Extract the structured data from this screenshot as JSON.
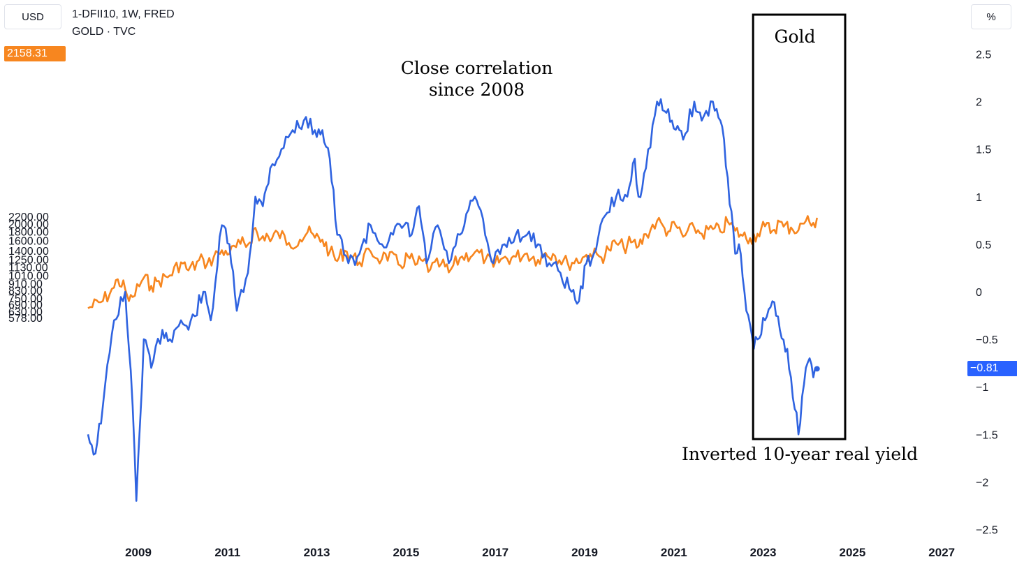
{
  "header": {
    "unit_left": "USD",
    "unit_right": "%",
    "legend_line1": "1-DFII10, 1W, FRED",
    "legend_line2": "GOLD · TVC",
    "gold_last_value": "2158.31",
    "real_yield_last_value": "−0.81"
  },
  "annotations": {
    "correlation_line1": "Close correlation",
    "correlation_line2": "since 2008",
    "box_label": "Gold",
    "inverted_label": "Inverted 10-year real yield"
  },
  "colors": {
    "gold": "#f7861f",
    "real_yield": "#2f63e0",
    "box": "#000000",
    "axis_text": "#131722"
  },
  "chart_data": {
    "type": "line",
    "x_ticks": [
      "2009",
      "2011",
      "2013",
      "2015",
      "2017",
      "2019",
      "2021",
      "2023",
      "2025",
      "2027"
    ],
    "left_axis": {
      "unit": "USD",
      "scale": "log",
      "ticks": [
        "578.00",
        "630.00",
        "690.00",
        "750.00",
        "830.00",
        "910.00",
        "1010.00",
        "1130.00",
        "1250.00",
        "1400.00",
        "1600.00",
        "1800.00",
        "2000.00",
        "2200.00"
      ]
    },
    "right_axis": {
      "unit": "%",
      "inverted": true,
      "ticks": [
        "2.5",
        "2",
        "1.5",
        "1",
        "0.5",
        "0",
        "−0.5",
        "−1",
        "−1.5",
        "−2",
        "−2.5"
      ]
    },
    "series": [
      {
        "name": "GOLD · TVC",
        "axis": "left",
        "points": [
          [
            "2007-11",
            655
          ],
          [
            "2008-03",
            720
          ],
          [
            "2008-06",
            860
          ],
          [
            "2008-07",
            960
          ],
          [
            "2008-09",
            840
          ],
          [
            "2008-10",
            720
          ],
          [
            "2008-11",
            760
          ],
          [
            "2009-02",
            980
          ],
          [
            "2009-04",
            880
          ],
          [
            "2009-06",
            940
          ],
          [
            "2009-09",
            1010
          ],
          [
            "2009-12",
            1200
          ],
          [
            "2010-02",
            1080
          ],
          [
            "2010-06",
            1250
          ],
          [
            "2010-07",
            1170
          ],
          [
            "2010-10",
            1360
          ],
          [
            "2010-12",
            1400
          ],
          [
            "2011-01",
            1340
          ],
          [
            "2011-04",
            1530
          ],
          [
            "2011-06",
            1520
          ],
          [
            "2011-08",
            1890
          ],
          [
            "2011-09",
            1600
          ],
          [
            "2011-11",
            1750
          ],
          [
            "2011-12",
            1580
          ],
          [
            "2012-02",
            1780
          ],
          [
            "2012-05",
            1550
          ],
          [
            "2012-08",
            1620
          ],
          [
            "2012-10",
            1780
          ],
          [
            "2012-12",
            1660
          ],
          [
            "2013-02",
            1620
          ],
          [
            "2013-04",
            1380
          ],
          [
            "2013-06",
            1220
          ],
          [
            "2013-08",
            1400
          ],
          [
            "2013-12",
            1200
          ],
          [
            "2014-03",
            1380
          ],
          [
            "2014-06",
            1250
          ],
          [
            "2014-07",
            1340
          ],
          [
            "2014-11",
            1150
          ],
          [
            "2015-01",
            1300
          ],
          [
            "2015-03",
            1160
          ],
          [
            "2015-05",
            1220
          ],
          [
            "2015-07",
            1090
          ],
          [
            "2015-10",
            1180
          ],
          [
            "2015-12",
            1050
          ],
          [
            "2016-03",
            1270
          ],
          [
            "2016-07",
            1370
          ],
          [
            "2016-10",
            1260
          ],
          [
            "2016-12",
            1130
          ],
          [
            "2017-02",
            1250
          ],
          [
            "2017-06",
            1290
          ],
          [
            "2017-09",
            1350
          ],
          [
            "2017-12",
            1240
          ],
          [
            "2018-02",
            1360
          ],
          [
            "2018-04",
            1340
          ],
          [
            "2018-08",
            1180
          ],
          [
            "2018-12",
            1280
          ],
          [
            "2019-02",
            1340
          ],
          [
            "2019-05",
            1280
          ],
          [
            "2019-07",
            1420
          ],
          [
            "2019-09",
            1540
          ],
          [
            "2019-11",
            1460
          ],
          [
            "2020-01",
            1560
          ],
          [
            "2020-03",
            1480
          ],
          [
            "2020-05",
            1740
          ],
          [
            "2020-08",
            2070
          ],
          [
            "2020-10",
            1880
          ],
          [
            "2020-11",
            1800
          ],
          [
            "2021-01",
            1950
          ],
          [
            "2021-03",
            1680
          ],
          [
            "2021-06",
            1890
          ],
          [
            "2021-08",
            1750
          ],
          [
            "2021-11",
            1860
          ],
          [
            "2022-01",
            1800
          ],
          [
            "2022-03",
            2050
          ],
          [
            "2022-05",
            1820
          ],
          [
            "2022-07",
            1700
          ],
          [
            "2022-09",
            1650
          ],
          [
            "2022-11",
            1750
          ],
          [
            "2023-01",
            1930
          ],
          [
            "2023-03",
            1820
          ],
          [
            "2023-05",
            2050
          ],
          [
            "2023-06",
            1920
          ],
          [
            "2023-08",
            1900
          ],
          [
            "2023-10",
            1830
          ],
          [
            "2023-11",
            2000
          ],
          [
            "2023-12",
            2070
          ],
          [
            "2024-01",
            2030
          ],
          [
            "2024-02",
            2020
          ],
          [
            "2024-03",
            2158.31
          ]
        ]
      },
      {
        "name": "1-DFII10, 1W, FRED",
        "axis": "right",
        "points": [
          [
            "2007-11",
            -1.5
          ],
          [
            "2008-01",
            -1.7
          ],
          [
            "2008-03",
            -1.2
          ],
          [
            "2008-06",
            -0.3
          ],
          [
            "2008-09",
            0.0
          ],
          [
            "2008-10",
            -0.6
          ],
          [
            "2008-11",
            -1.2
          ],
          [
            "2008-12",
            -2.2
          ],
          [
            "2009-02",
            -0.5
          ],
          [
            "2009-04",
            -0.8
          ],
          [
            "2009-07",
            -0.4
          ],
          [
            "2009-09",
            -0.5
          ],
          [
            "2009-12",
            -0.3
          ],
          [
            "2010-02",
            -0.4
          ],
          [
            "2010-06",
            0.0
          ],
          [
            "2010-08",
            -0.3
          ],
          [
            "2010-11",
            0.7
          ],
          [
            "2011-01",
            0.5
          ],
          [
            "2011-03",
            -0.2
          ],
          [
            "2011-06",
            0.2
          ],
          [
            "2011-08",
            1.0
          ],
          [
            "2011-10",
            0.9
          ],
          [
            "2011-12",
            1.3
          ],
          [
            "2012-03",
            1.5
          ],
          [
            "2012-06",
            1.7
          ],
          [
            "2012-09",
            1.8
          ],
          [
            "2012-12",
            1.7
          ],
          [
            "2013-02",
            1.7
          ],
          [
            "2013-04",
            1.4
          ],
          [
            "2013-06",
            0.6
          ],
          [
            "2013-09",
            0.3
          ],
          [
            "2013-12",
            0.4
          ],
          [
            "2014-03",
            0.7
          ],
          [
            "2014-06",
            0.5
          ],
          [
            "2014-09",
            0.6
          ],
          [
            "2014-12",
            0.7
          ],
          [
            "2015-02",
            0.6
          ],
          [
            "2015-04",
            0.9
          ],
          [
            "2015-06",
            0.3
          ],
          [
            "2015-09",
            0.7
          ],
          [
            "2015-12",
            0.3
          ],
          [
            "2016-03",
            0.6
          ],
          [
            "2016-07",
            1.0
          ],
          [
            "2016-08",
            0.9
          ],
          [
            "2016-11",
            0.4
          ],
          [
            "2016-12",
            0.3
          ],
          [
            "2017-03",
            0.5
          ],
          [
            "2017-06",
            0.6
          ],
          [
            "2017-09",
            0.6
          ],
          [
            "2017-12",
            0.5
          ],
          [
            "2018-03",
            0.3
          ],
          [
            "2018-06",
            0.2
          ],
          [
            "2018-09",
            0.0
          ],
          [
            "2018-11",
            -0.1
          ],
          [
            "2019-01",
            0.3
          ],
          [
            "2019-03",
            0.4
          ],
          [
            "2019-06",
            0.8
          ],
          [
            "2019-09",
            1.0
          ],
          [
            "2019-12",
            1.0
          ],
          [
            "2020-02",
            1.4
          ],
          [
            "2020-03",
            1.0
          ],
          [
            "2020-05",
            1.3
          ],
          [
            "2020-08",
            2.0
          ],
          [
            "2020-10",
            1.9
          ],
          [
            "2020-12",
            1.8
          ],
          [
            "2021-02",
            1.7
          ],
          [
            "2021-03",
            1.6
          ],
          [
            "2021-06",
            2.0
          ],
          [
            "2021-08",
            1.8
          ],
          [
            "2021-11",
            2.0
          ],
          [
            "2022-01",
            1.8
          ],
          [
            "2022-02",
            1.6
          ],
          [
            "2022-03",
            1.2
          ],
          [
            "2022-05",
            0.4
          ],
          [
            "2022-06",
            0.5
          ],
          [
            "2022-08",
            -0.2
          ],
          [
            "2022-10",
            -0.6
          ],
          [
            "2022-11",
            -0.5
          ],
          [
            "2023-01",
            -0.3
          ],
          [
            "2023-03",
            -0.1
          ],
          [
            "2023-05",
            -0.4
          ],
          [
            "2023-07",
            -0.6
          ],
          [
            "2023-08",
            -0.9
          ],
          [
            "2023-10",
            -1.5
          ],
          [
            "2023-11",
            -1.1
          ],
          [
            "2023-12",
            -0.8
          ],
          [
            "2024-01",
            -0.7
          ],
          [
            "2024-02",
            -0.9
          ],
          [
            "2024-03",
            -0.81
          ]
        ]
      }
    ]
  }
}
